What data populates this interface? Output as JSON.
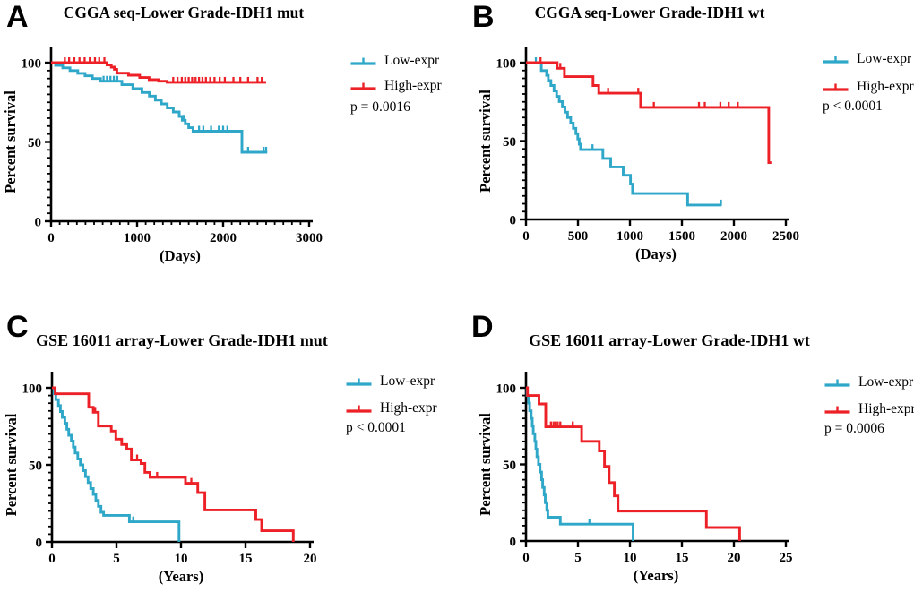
{
  "figure_background": "#ffffff",
  "colors": {
    "low": "#2FA7C8",
    "high": "#EC2026",
    "axis": "#000000",
    "text": "#000000"
  },
  "chart_data": [
    {
      "panel_label": "A",
      "type": "line",
      "subtype": "kaplan-meier-step",
      "title": "CGGA seq-Lower Grade-IDH1 mut",
      "xlabel": "(Days)",
      "ylabel": "Percent survival",
      "p_value": "p = 0.0016",
      "xlim": [
        0,
        3000
      ],
      "ylim": [
        0,
        100
      ],
      "xticks": [
        0,
        1000,
        2000,
        3000
      ],
      "yticks": [
        0,
        50,
        100
      ],
      "x_minor_step": 100,
      "y_minor_step": 5,
      "legend_position": "right",
      "grid": false,
      "series": [
        {
          "name": "Low-expr",
          "color_key": "low",
          "steps": [
            [
              0,
              100
            ],
            [
              52,
              98.3
            ],
            [
              135,
              96.7
            ],
            [
              220,
              95
            ],
            [
              310,
              93.3
            ],
            [
              395,
              91.7
            ],
            [
              480,
              90
            ],
            [
              575,
              88.3
            ],
            [
              823,
              86.1
            ],
            [
              950,
              83.6
            ],
            [
              1056,
              81.2
            ],
            [
              1143,
              78.9
            ],
            [
              1212,
              76.4
            ],
            [
              1282,
              74
            ],
            [
              1351,
              71.4
            ],
            [
              1421,
              68.9
            ],
            [
              1490,
              66.1
            ],
            [
              1525,
              63.7
            ],
            [
              1560,
              61.4
            ],
            [
              1600,
              59
            ],
            [
              1650,
              56.8
            ],
            [
              2219,
              43.5
            ],
            [
              2512,
              43.5
            ]
          ],
          "censors": [
            610,
            650,
            690,
            730,
            770,
            1540,
            1720,
            1770,
            1860,
            1950,
            2000,
            2050,
            2290,
            2470,
            2500
          ]
        },
        {
          "name": "High-expr",
          "color_key": "high",
          "steps": [
            [
              0,
              100
            ],
            [
              650,
              98.6
            ],
            [
              700,
              97.2
            ],
            [
              735,
              95.8
            ],
            [
              765,
              93.4
            ],
            [
              900,
              92.1
            ],
            [
              1030,
              90.6
            ],
            [
              1140,
              89.3
            ],
            [
              1250,
              88.3
            ],
            [
              1350,
              87.6
            ],
            [
              2500,
              87.6
            ]
          ],
          "censors": [
            160,
            210,
            270,
            330,
            390,
            450,
            510,
            560,
            620,
            1420,
            1470,
            1520,
            1560,
            1600,
            1640,
            1680,
            1720,
            1760,
            1800,
            1850,
            1900,
            1960,
            2020,
            2120,
            2200,
            2290,
            2400,
            2450
          ]
        }
      ]
    },
    {
      "panel_label": "B",
      "type": "line",
      "subtype": "kaplan-meier-step",
      "title": "CGGA seq-Lower Grade-IDH1 wt",
      "xlabel": "(Days)",
      "ylabel": "Percent survival",
      "p_value": "p < 0.0001",
      "xlim": [
        0,
        2500
      ],
      "ylim": [
        0,
        100
      ],
      "xticks": [
        0,
        500,
        1000,
        1500,
        2000,
        2500
      ],
      "yticks": [
        0,
        50,
        100
      ],
      "x_minor_step": null,
      "y_minor_step": 5,
      "legend_position": "right",
      "grid": false,
      "series": [
        {
          "name": "Low-expr",
          "color_key": "low",
          "steps": [
            [
              0,
              100
            ],
            [
              147,
              95
            ],
            [
              198,
              91.9
            ],
            [
              215,
              88.6
            ],
            [
              240,
              85.4
            ],
            [
              270,
              82
            ],
            [
              295,
              78.5
            ],
            [
              320,
              75.2
            ],
            [
              350,
              71.8
            ],
            [
              375,
              68.4
            ],
            [
              400,
              65
            ],
            [
              430,
              61.5
            ],
            [
              455,
              58.1
            ],
            [
              480,
              54.7
            ],
            [
              498,
              51.3
            ],
            [
              512,
              48
            ],
            [
              525,
              44.5
            ],
            [
              740,
              38.9
            ],
            [
              815,
              33.5
            ],
            [
              935,
              28.2
            ],
            [
              1005,
              22.5
            ],
            [
              1025,
              16.5
            ],
            [
              1555,
              9.2
            ],
            [
              1880,
              9.2
            ]
          ],
          "censors": [
            95,
            640,
            1875
          ]
        },
        {
          "name": "High-expr",
          "color_key": "high",
          "steps": [
            [
              0,
              100
            ],
            [
              300,
              96.4
            ],
            [
              370,
              91.1
            ],
            [
              645,
              85.4
            ],
            [
              700,
              80.5
            ],
            [
              1103,
              71.5
            ],
            [
              2335,
              36.2
            ],
            [
              2360,
              36.2
            ]
          ],
          "censors": [
            140,
            330,
            790,
            1080,
            1230,
            1664,
            1720,
            1870,
            1950,
            2037
          ]
        }
      ]
    },
    {
      "panel_label": "C",
      "type": "line",
      "subtype": "kaplan-meier-step",
      "title": "GSE 16011 array-Lower Grade-IDH1 mut",
      "xlabel": "(Years)",
      "ylabel": "Percent survival",
      "p_value": "p < 0.0001",
      "xlim": [
        0,
        20
      ],
      "ylim": [
        0,
        100
      ],
      "xticks": [
        0,
        5,
        10,
        15,
        20
      ],
      "yticks": [
        0,
        50,
        100
      ],
      "x_minor_step": null,
      "y_minor_step": 5,
      "legend_position": "right",
      "grid": false,
      "series": [
        {
          "name": "Low-expr",
          "color_key": "low",
          "steps": [
            [
              0,
              100
            ],
            [
              0.15,
              96.2
            ],
            [
              0.3,
              92.3
            ],
            [
              0.5,
              88.5
            ],
            [
              0.65,
              84.6
            ],
            [
              0.8,
              80.8
            ],
            [
              1.0,
              77
            ],
            [
              1.15,
              73.1
            ],
            [
              1.3,
              69.2
            ],
            [
              1.5,
              65.4
            ],
            [
              1.65,
              61.5
            ],
            [
              1.8,
              57.7
            ],
            [
              2.0,
              53.8
            ],
            [
              2.2,
              50
            ],
            [
              2.4,
              46.2
            ],
            [
              2.6,
              42.3
            ],
            [
              2.8,
              38.5
            ],
            [
              3.0,
              34.6
            ],
            [
              3.2,
              30.8
            ],
            [
              3.4,
              26.9
            ],
            [
              3.6,
              23.1
            ],
            [
              3.8,
              19.2
            ],
            [
              4.0,
              17.2
            ],
            [
              6.0,
              13
            ],
            [
              9.85,
              0
            ]
          ],
          "censors": [
            6.3
          ]
        },
        {
          "name": "High-expr",
          "color_key": "high",
          "steps": [
            [
              0,
              100
            ],
            [
              0.25,
              96.1
            ],
            [
              2.85,
              87.4
            ],
            [
              3.2,
              84.1
            ],
            [
              3.6,
              75.2
            ],
            [
              4.6,
              71.9
            ],
            [
              4.95,
              66.7
            ],
            [
              5.4,
              63.2
            ],
            [
              5.8,
              60.3
            ],
            [
              6.15,
              53.2
            ],
            [
              6.9,
              50.9
            ],
            [
              7.2,
              45.1
            ],
            [
              7.6,
              41.9
            ],
            [
              10.35,
              38
            ],
            [
              11.3,
              31.9
            ],
            [
              11.85,
              20.7
            ],
            [
              15.8,
              14.5
            ],
            [
              16.25,
              7.2
            ],
            [
              18.7,
              0
            ]
          ],
          "censors": [
            3.35,
            6.6,
            8.15,
            10.8
          ]
        }
      ]
    },
    {
      "panel_label": "D",
      "type": "line",
      "subtype": "kaplan-meier-step",
      "title": "GSE 16011 array-Lower Grade-IDH1 wt",
      "xlabel": "(Years)",
      "ylabel": "Percent survival",
      "p_value": "p = 0.0006",
      "xlim": [
        0,
        25
      ],
      "ylim": [
        0,
        100
      ],
      "xticks": [
        0,
        5,
        10,
        15,
        20,
        25
      ],
      "yticks": [
        0,
        50,
        100
      ],
      "x_minor_step": null,
      "y_minor_step": 5,
      "legend_position": "right",
      "grid": false,
      "series": [
        {
          "name": "Low-expr",
          "color_key": "low",
          "steps": [
            [
              0,
              100
            ],
            [
              0.1,
              95
            ],
            [
              0.25,
              90
            ],
            [
              0.35,
              85
            ],
            [
              0.5,
              80
            ],
            [
              0.6,
              75
            ],
            [
              0.7,
              70
            ],
            [
              0.85,
              65
            ],
            [
              0.95,
              60
            ],
            [
              1.05,
              55
            ],
            [
              1.2,
              50
            ],
            [
              1.35,
              45
            ],
            [
              1.5,
              40
            ],
            [
              1.6,
              35
            ],
            [
              1.75,
              30
            ],
            [
              1.85,
              25
            ],
            [
              2.0,
              20
            ],
            [
              2.1,
              15.5
            ],
            [
              3.3,
              11
            ],
            [
              10.3,
              0
            ]
          ],
          "censors": [
            6.1
          ]
        },
        {
          "name": "High-expr",
          "color_key": "high",
          "steps": [
            [
              0,
              100
            ],
            [
              0.15,
              95
            ],
            [
              1.25,
              89.5
            ],
            [
              1.9,
              74.5
            ],
            [
              5.35,
              65
            ],
            [
              7.05,
              58.7
            ],
            [
              7.55,
              48.7
            ],
            [
              8.0,
              38.1
            ],
            [
              8.5,
              29.4
            ],
            [
              8.85,
              19.5
            ],
            [
              17.35,
              8.8
            ],
            [
              20.55,
              0
            ]
          ],
          "censors": [
            2.4,
            2.65,
            2.85,
            3.05,
            3.3,
            4.5
          ]
        }
      ]
    }
  ]
}
